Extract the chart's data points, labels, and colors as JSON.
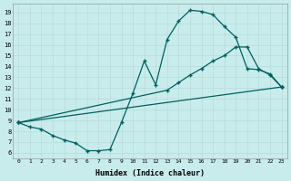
{
  "xlabel": "Humidex (Indice chaleur)",
  "bg_color": "#c8ecec",
  "grid_color": "#b8dada",
  "line_color": "#005f5f",
  "xlim": [
    -0.5,
    23.5
  ],
  "ylim": [
    5.5,
    19.8
  ],
  "xticks": [
    0,
    1,
    2,
    3,
    4,
    5,
    6,
    7,
    8,
    9,
    10,
    11,
    12,
    13,
    14,
    15,
    16,
    17,
    18,
    19,
    20,
    21,
    22,
    23
  ],
  "yticks": [
    6,
    7,
    8,
    9,
    10,
    11,
    12,
    13,
    14,
    15,
    16,
    17,
    18,
    19
  ],
  "line1_x": [
    0,
    1,
    2,
    3,
    4,
    5,
    6,
    7,
    8,
    9,
    10,
    11,
    12,
    13,
    14,
    15,
    16,
    17,
    18,
    19,
    20,
    21,
    22,
    23
  ],
  "line1_y": [
    8.8,
    8.4,
    8.2,
    7.6,
    7.2,
    6.9,
    6.2,
    6.2,
    6.3,
    8.8,
    11.5,
    14.5,
    12.3,
    16.5,
    18.2,
    19.2,
    19.1,
    18.8,
    17.7,
    16.7,
    13.8,
    13.7,
    13.3,
    12.1
  ],
  "line2_x": [
    0,
    13,
    14,
    15,
    16,
    17,
    18,
    19,
    20,
    21,
    22,
    23
  ],
  "line2_y": [
    8.8,
    11.8,
    12.5,
    13.2,
    13.8,
    14.5,
    15.0,
    15.8,
    15.8,
    13.8,
    13.2,
    12.1
  ],
  "line3_x": [
    0,
    23
  ],
  "line3_y": [
    8.8,
    12.1
  ]
}
